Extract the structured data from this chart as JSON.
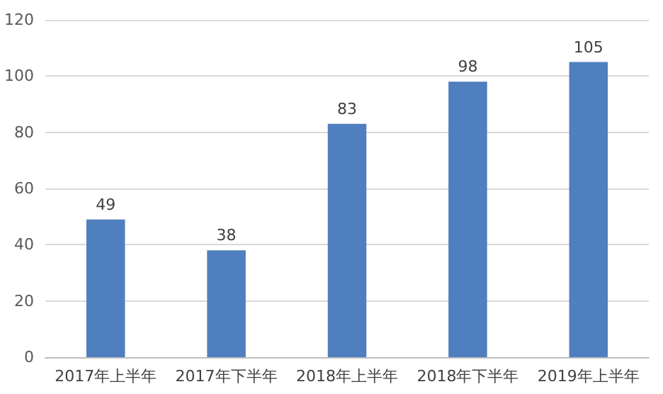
{
  "chart_data": {
    "type": "bar",
    "categories": [
      "2017年上半年",
      "2017年下半年",
      "2018年上半年",
      "2018年下半年",
      "2019年上半年"
    ],
    "values": [
      49,
      38,
      83,
      98,
      105
    ],
    "color": "#4f7fbe",
    "ylim": [
      0,
      120
    ],
    "yticks": [
      0,
      20,
      40,
      60,
      80,
      100,
      120
    ],
    "grid": "y",
    "data_labels": true
  }
}
